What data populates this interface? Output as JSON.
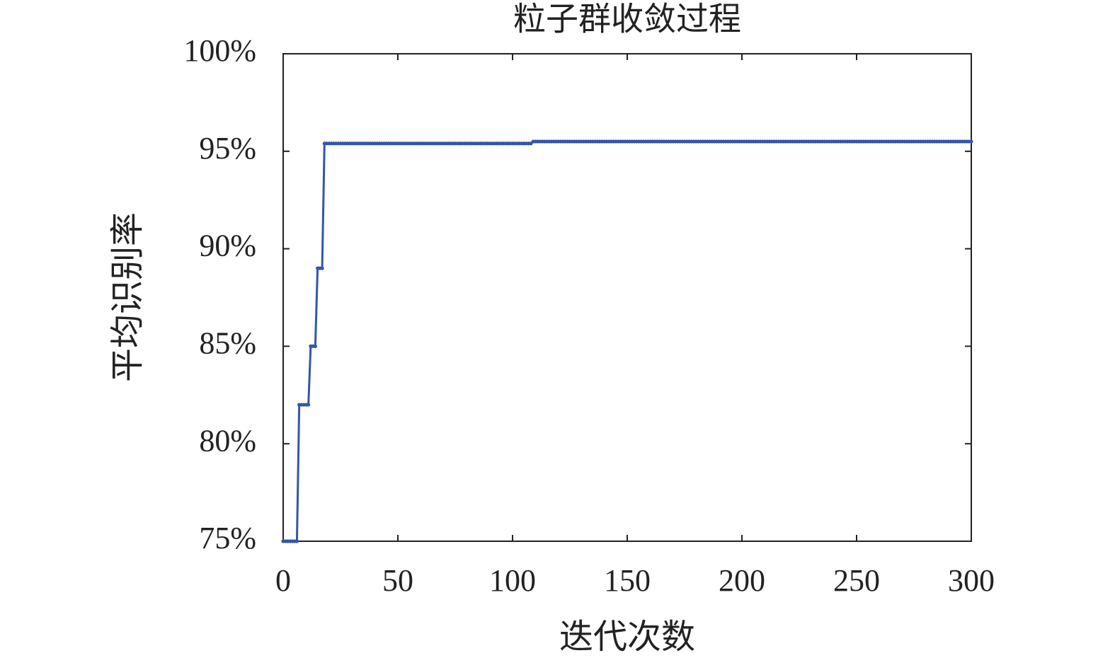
{
  "chart_data": {
    "type": "line",
    "title": "粒子群收敛过程",
    "x_label": "迭代次数",
    "y_label": "平均识别率",
    "xlim": [
      0,
      300
    ],
    "xticks": [
      0,
      50,
      100,
      150,
      200,
      250,
      300
    ],
    "ylim": [
      75,
      100
    ],
    "yticks": [
      {
        "value": 75,
        "label": "75%"
      },
      {
        "value": 80,
        "label": "80%"
      },
      {
        "value": 85,
        "label": "85%"
      },
      {
        "value": 90,
        "label": "90%"
      },
      {
        "value": 95,
        "label": "95%"
      },
      {
        "value": 100,
        "label": "100%"
      }
    ],
    "color": "#3355aa",
    "x": [
      0,
      1,
      2,
      3,
      4,
      5,
      6,
      7,
      8,
      9,
      10,
      11,
      12,
      13,
      14,
      15,
      16,
      17,
      18,
      19,
      20,
      21,
      22,
      23,
      24,
      25,
      26,
      27,
      28,
      29,
      30,
      31,
      32,
      33,
      34,
      35,
      36,
      37,
      38,
      39,
      40,
      41,
      42,
      43,
      44,
      45,
      46,
      47,
      48,
      49,
      50,
      51,
      52,
      53,
      54,
      55,
      56,
      57,
      58,
      59,
      60,
      61,
      62,
      63,
      64,
      65,
      66,
      67,
      68,
      69,
      70,
      71,
      72,
      73,
      74,
      75,
      76,
      77,
      78,
      79,
      80,
      81,
      82,
      83,
      84,
      85,
      86,
      87,
      88,
      89,
      90,
      91,
      92,
      93,
      94,
      95,
      96,
      97,
      98,
      99,
      100,
      101,
      102,
      103,
      104,
      105,
      106,
      107,
      108,
      109,
      110,
      111,
      112,
      113,
      114,
      115,
      116,
      117,
      118,
      119,
      120,
      121,
      122,
      123,
      124,
      125,
      126,
      127,
      128,
      129,
      130,
      131,
      132,
      133,
      134,
      135,
      136,
      137,
      138,
      139,
      140,
      141,
      142,
      143,
      144,
      145,
      146,
      147,
      148,
      149,
      150,
      151,
      152,
      153,
      154,
      155,
      156,
      157,
      158,
      159,
      160,
      161,
      162,
      163,
      164,
      165,
      166,
      167,
      168,
      169,
      170,
      171,
      172,
      173,
      174,
      175,
      176,
      177,
      178,
      179,
      180,
      181,
      182,
      183,
      184,
      185,
      186,
      187,
      188,
      189,
      190,
      191,
      192,
      193,
      194,
      195,
      196,
      197,
      198,
      199,
      200,
      201,
      202,
      203,
      204,
      205,
      206,
      207,
      208,
      209,
      210,
      211,
      212,
      213,
      214,
      215,
      216,
      217,
      218,
      219,
      220,
      221,
      222,
      223,
      224,
      225,
      226,
      227,
      228,
      229,
      230,
      231,
      232,
      233,
      234,
      235,
      236,
      237,
      238,
      239,
      240,
      241,
      242,
      243,
      244,
      245,
      246,
      247,
      248,
      249,
      250,
      251,
      252,
      253,
      254,
      255,
      256,
      257,
      258,
      259,
      260,
      261,
      262,
      263,
      264,
      265,
      266,
      267,
      268,
      269,
      270,
      271,
      272,
      273,
      274,
      275,
      276,
      277,
      278,
      279,
      280,
      281,
      282,
      283,
      284,
      285,
      286,
      287,
      288,
      289,
      290,
      291,
      292,
      293,
      294,
      295,
      296,
      297,
      298,
      299,
      300
    ],
    "values": [
      75,
      75,
      75,
      75,
      75,
      75,
      75,
      82,
      82,
      82,
      82,
      82,
      85,
      85,
      85,
      89,
      89,
      89,
      95.4,
      95.4,
      95.4,
      95.4,
      95.4,
      95.4,
      95.4,
      95.4,
      95.4,
      95.4,
      95.4,
      95.4,
      95.4,
      95.4,
      95.4,
      95.4,
      95.4,
      95.4,
      95.4,
      95.4,
      95.4,
      95.4,
      95.4,
      95.4,
      95.4,
      95.4,
      95.4,
      95.4,
      95.4,
      95.4,
      95.4,
      95.4,
      95.4,
      95.4,
      95.4,
      95.4,
      95.4,
      95.4,
      95.4,
      95.4,
      95.4,
      95.4,
      95.4,
      95.4,
      95.4,
      95.4,
      95.4,
      95.4,
      95.4,
      95.4,
      95.4,
      95.4,
      95.4,
      95.4,
      95.4,
      95.4,
      95.4,
      95.4,
      95.4,
      95.4,
      95.4,
      95.4,
      95.4,
      95.4,
      95.4,
      95.4,
      95.4,
      95.4,
      95.4,
      95.4,
      95.4,
      95.4,
      95.4,
      95.4,
      95.4,
      95.4,
      95.4,
      95.4,
      95.4,
      95.4,
      95.4,
      95.4,
      95.4,
      95.4,
      95.4,
      95.4,
      95.4,
      95.4,
      95.4,
      95.4,
      95.4,
      95.5,
      95.5,
      95.5,
      95.5,
      95.5,
      95.5,
      95.5,
      95.5,
      95.5,
      95.5,
      95.5,
      95.5,
      95.5,
      95.5,
      95.5,
      95.5,
      95.5,
      95.5,
      95.5,
      95.5,
      95.5,
      95.5,
      95.5,
      95.5,
      95.5,
      95.5,
      95.5,
      95.5,
      95.5,
      95.5,
      95.5,
      95.5,
      95.5,
      95.5,
      95.5,
      95.5,
      95.5,
      95.5,
      95.5,
      95.5,
      95.5,
      95.5,
      95.5,
      95.5,
      95.5,
      95.5,
      95.5,
      95.5,
      95.5,
      95.5,
      95.5,
      95.5,
      95.5,
      95.5,
      95.5,
      95.5,
      95.5,
      95.5,
      95.5,
      95.5,
      95.5,
      95.5,
      95.5,
      95.5,
      95.5,
      95.5,
      95.5,
      95.5,
      95.5,
      95.5,
      95.5,
      95.5,
      95.5,
      95.5,
      95.5,
      95.5,
      95.5,
      95.5,
      95.5,
      95.5,
      95.5,
      95.5,
      95.5,
      95.5,
      95.5,
      95.5,
      95.5,
      95.5,
      95.5,
      95.5,
      95.5,
      95.5,
      95.5,
      95.5,
      95.5,
      95.5,
      95.5,
      95.5,
      95.5,
      95.5,
      95.5,
      95.5,
      95.5,
      95.5,
      95.5,
      95.5,
      95.5,
      95.5,
      95.5,
      95.5,
      95.5,
      95.5,
      95.5,
      95.5,
      95.5,
      95.5,
      95.5,
      95.5,
      95.5,
      95.5,
      95.5,
      95.5,
      95.5,
      95.5,
      95.5,
      95.5,
      95.5,
      95.5,
      95.5,
      95.5,
      95.5,
      95.5,
      95.5,
      95.5,
      95.5,
      95.5,
      95.5,
      95.5,
      95.5,
      95.5,
      95.5,
      95.5,
      95.5,
      95.5,
      95.5,
      95.5,
      95.5,
      95.5,
      95.5,
      95.5,
      95.5,
      95.5,
      95.5,
      95.5,
      95.5,
      95.5,
      95.5,
      95.5,
      95.5,
      95.5,
      95.5,
      95.5,
      95.5,
      95.5,
      95.5,
      95.5,
      95.5,
      95.5,
      95.5,
      95.5,
      95.5,
      95.5,
      95.5,
      95.5,
      95.5,
      95.5,
      95.5,
      95.5,
      95.5,
      95.5,
      95.5,
      95.5,
      95.5,
      95.5,
      95.5,
      95.5,
      95.5,
      95.5,
      95.5,
      95.5,
      95.5,
      95.5
    ]
  }
}
